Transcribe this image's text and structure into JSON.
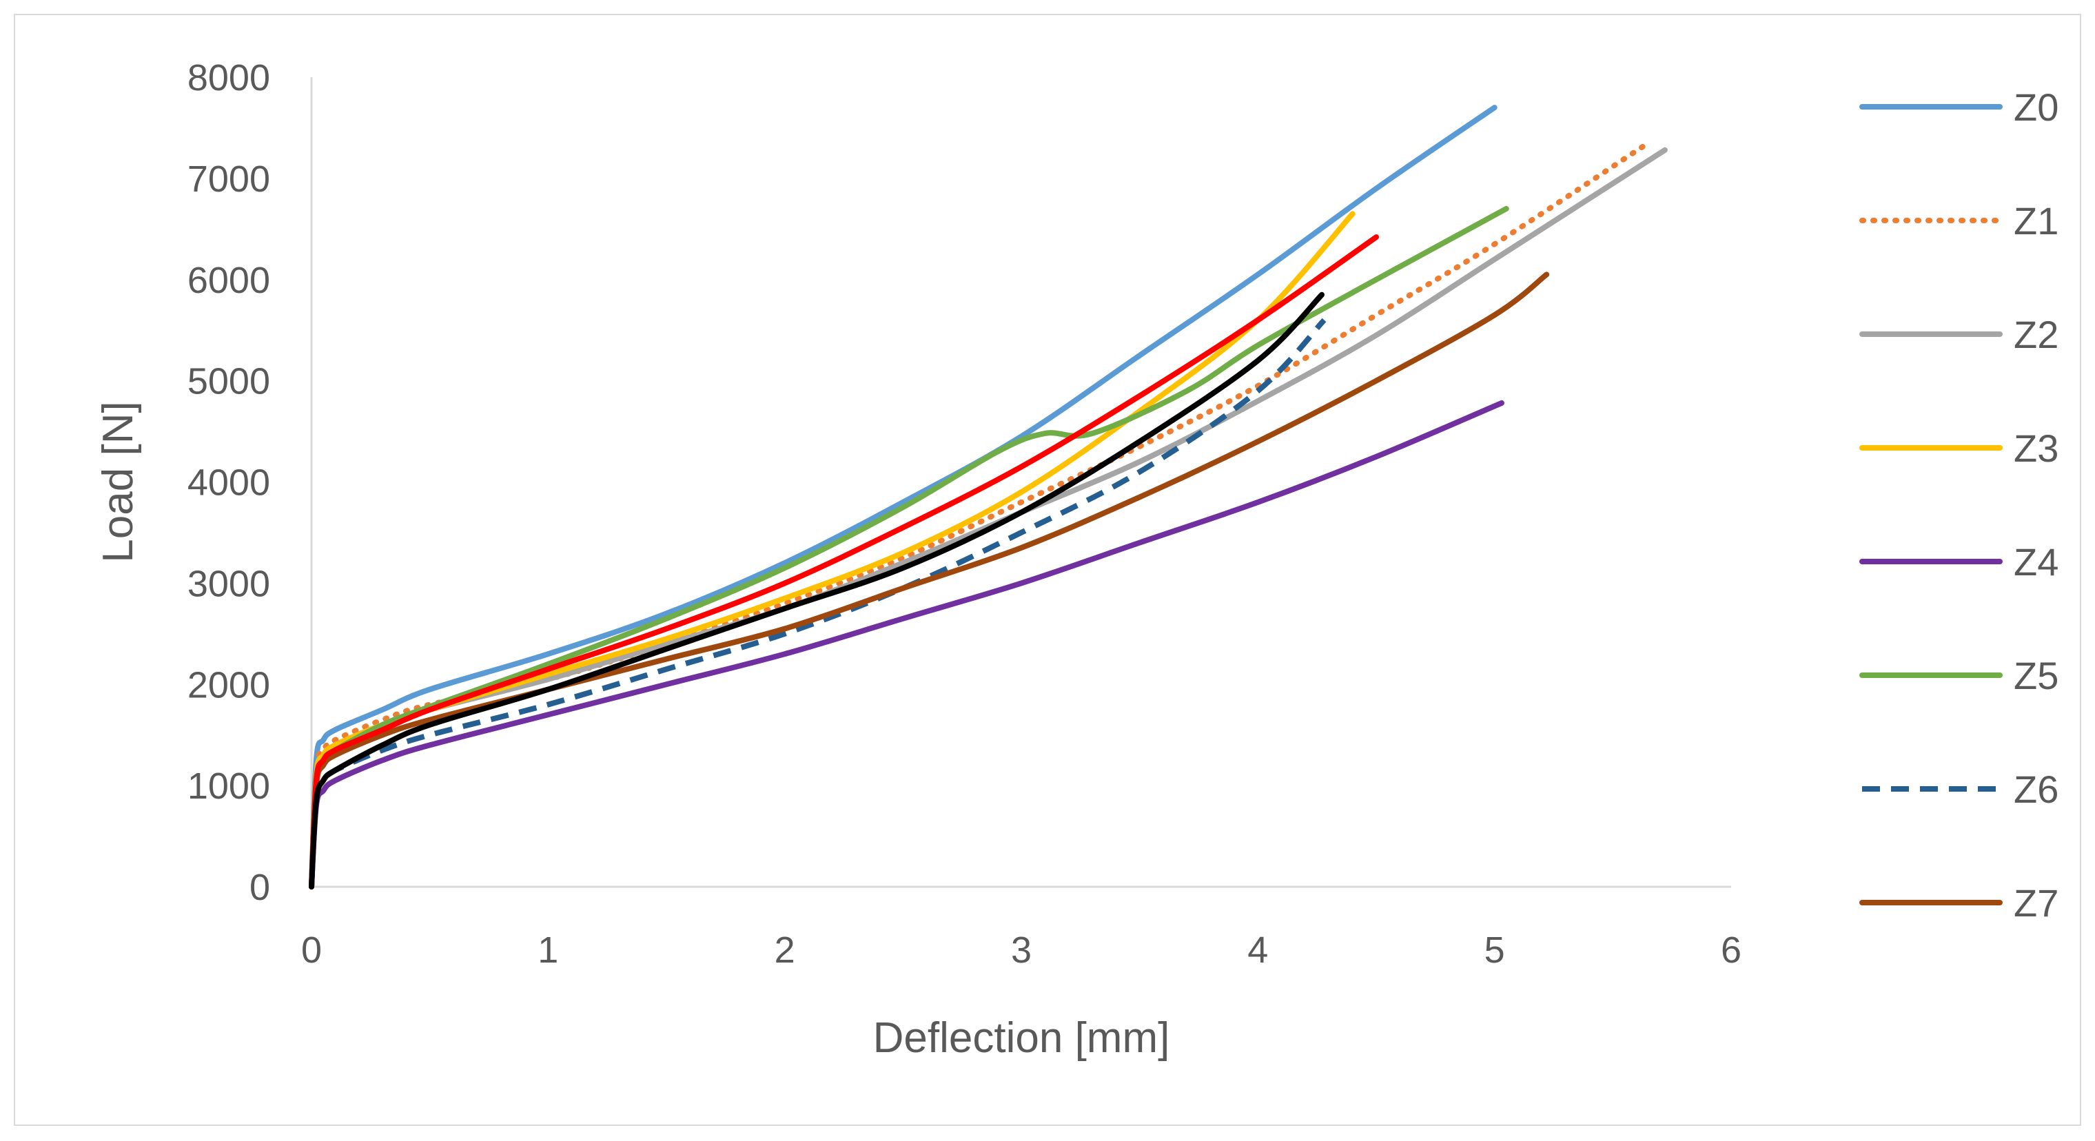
{
  "chart_data": {
    "type": "line",
    "title": "",
    "xlabel": "Deflection [mm]",
    "ylabel": "Load [N]",
    "xlim": [
      0,
      6
    ],
    "ylim": [
      0,
      8000
    ],
    "xticks": [
      "0",
      "1",
      "2",
      "3",
      "4",
      "5",
      "6"
    ],
    "yticks": [
      "0",
      "1000",
      "2000",
      "3000",
      "4000",
      "5000",
      "6000",
      "7000",
      "8000"
    ],
    "grid": false,
    "legend_position": "right",
    "series": [
      {
        "name": "Z0",
        "color": "#5B9BD5",
        "style": "solid",
        "x": [
          0,
          0.02,
          0.05,
          0.1,
          0.3,
          0.5,
          1.0,
          1.5,
          2.0,
          2.5,
          3.0,
          3.5,
          4.0,
          4.5,
          5.0
        ],
        "y": [
          0,
          1250,
          1450,
          1550,
          1750,
          1950,
          2300,
          2700,
          3200,
          3800,
          4450,
          5250,
          6050,
          6900,
          7700
        ]
      },
      {
        "name": "Z1",
        "color": "#ED7D31",
        "style": "dotted",
        "x": [
          0,
          0.02,
          0.05,
          0.1,
          0.3,
          0.5,
          1.0,
          1.5,
          2.0,
          2.5,
          3.0,
          3.5,
          4.0,
          4.5,
          5.0,
          5.65
        ],
        "y": [
          0,
          1150,
          1350,
          1450,
          1650,
          1800,
          2050,
          2400,
          2800,
          3250,
          3800,
          4350,
          4950,
          5650,
          6350,
          7350
        ]
      },
      {
        "name": "Z2",
        "color": "#A5A5A5",
        "style": "solid",
        "x": [
          0,
          0.02,
          0.05,
          0.1,
          0.3,
          0.5,
          1.0,
          1.5,
          2.0,
          2.5,
          3.0,
          3.5,
          4.0,
          4.5,
          5.0,
          5.72
        ],
        "y": [
          0,
          1100,
          1300,
          1400,
          1600,
          1750,
          2050,
          2400,
          2750,
          3200,
          3700,
          4200,
          4800,
          5450,
          6200,
          7280
        ]
      },
      {
        "name": "Z3",
        "color": "#FFC000",
        "style": "solid",
        "x": [
          0,
          0.02,
          0.05,
          0.1,
          0.3,
          0.5,
          1.0,
          1.5,
          2.0,
          2.5,
          3.0,
          3.5,
          4.0,
          4.4
        ],
        "y": [
          0,
          1100,
          1300,
          1400,
          1600,
          1750,
          2100,
          2450,
          2850,
          3300,
          3900,
          4700,
          5600,
          6650
        ]
      },
      {
        "name": "Z4",
        "color": "#7030A0",
        "style": "solid",
        "x": [
          0,
          0.02,
          0.05,
          0.1,
          0.3,
          0.5,
          1.0,
          1.5,
          2.0,
          2.5,
          3.0,
          3.5,
          4.0,
          4.5,
          5.03
        ],
        "y": [
          0,
          800,
          950,
          1050,
          1250,
          1400,
          1700,
          2000,
          2300,
          2650,
          3000,
          3400,
          3800,
          4250,
          4780
        ]
      },
      {
        "name": "Z5",
        "color": "#70AD47",
        "style": "solid",
        "x": [
          0,
          0.02,
          0.05,
          0.1,
          0.3,
          0.5,
          1.0,
          1.5,
          2.0,
          2.5,
          2.9,
          3.1,
          3.3,
          3.7,
          4.0,
          4.5,
          5.05
        ],
        "y": [
          0,
          1050,
          1250,
          1350,
          1600,
          1780,
          2200,
          2650,
          3150,
          3750,
          4300,
          4480,
          4480,
          4900,
          5350,
          6000,
          6700
        ]
      },
      {
        "name": "Z6",
        "color": "#255E91",
        "style": "dashed",
        "x": [
          0,
          0.02,
          0.05,
          0.1,
          0.3,
          0.5,
          1.0,
          1.5,
          2.0,
          2.5,
          3.0,
          3.5,
          4.0,
          4.28
        ],
        "y": [
          0,
          900,
          1050,
          1150,
          1350,
          1500,
          1800,
          2150,
          2500,
          2950,
          3500,
          4100,
          4900,
          5600
        ]
      },
      {
        "name": "Z7",
        "color": "#9E480E",
        "style": "solid",
        "x": [
          0,
          0.02,
          0.05,
          0.1,
          0.3,
          0.5,
          1.0,
          1.5,
          2.0,
          2.5,
          3.0,
          3.5,
          4.0,
          4.5,
          5.0,
          5.22
        ],
        "y": [
          0,
          1000,
          1200,
          1300,
          1500,
          1650,
          1950,
          2250,
          2550,
          2950,
          3350,
          3850,
          4400,
          5000,
          5650,
          6050
        ]
      },
      {
        "name": "",
        "color": "#FF0000",
        "style": "solid",
        "x": [
          0,
          0.02,
          0.05,
          0.1,
          0.3,
          0.5,
          1.0,
          1.5,
          2.0,
          2.5,
          3.0,
          3.5,
          4.0,
          4.5
        ],
        "y": [
          0,
          1050,
          1250,
          1350,
          1550,
          1750,
          2150,
          2550,
          3000,
          3550,
          4150,
          4850,
          5600,
          6420
        ]
      },
      {
        "name": "",
        "color": "#000000",
        "style": "solid",
        "x": [
          0,
          0.02,
          0.05,
          0.1,
          0.3,
          0.5,
          1.0,
          1.5,
          2.0,
          2.5,
          3.0,
          3.5,
          4.0,
          4.27
        ],
        "y": [
          0,
          850,
          1050,
          1150,
          1400,
          1600,
          1950,
          2350,
          2750,
          3150,
          3700,
          4400,
          5200,
          5850
        ]
      }
    ]
  }
}
